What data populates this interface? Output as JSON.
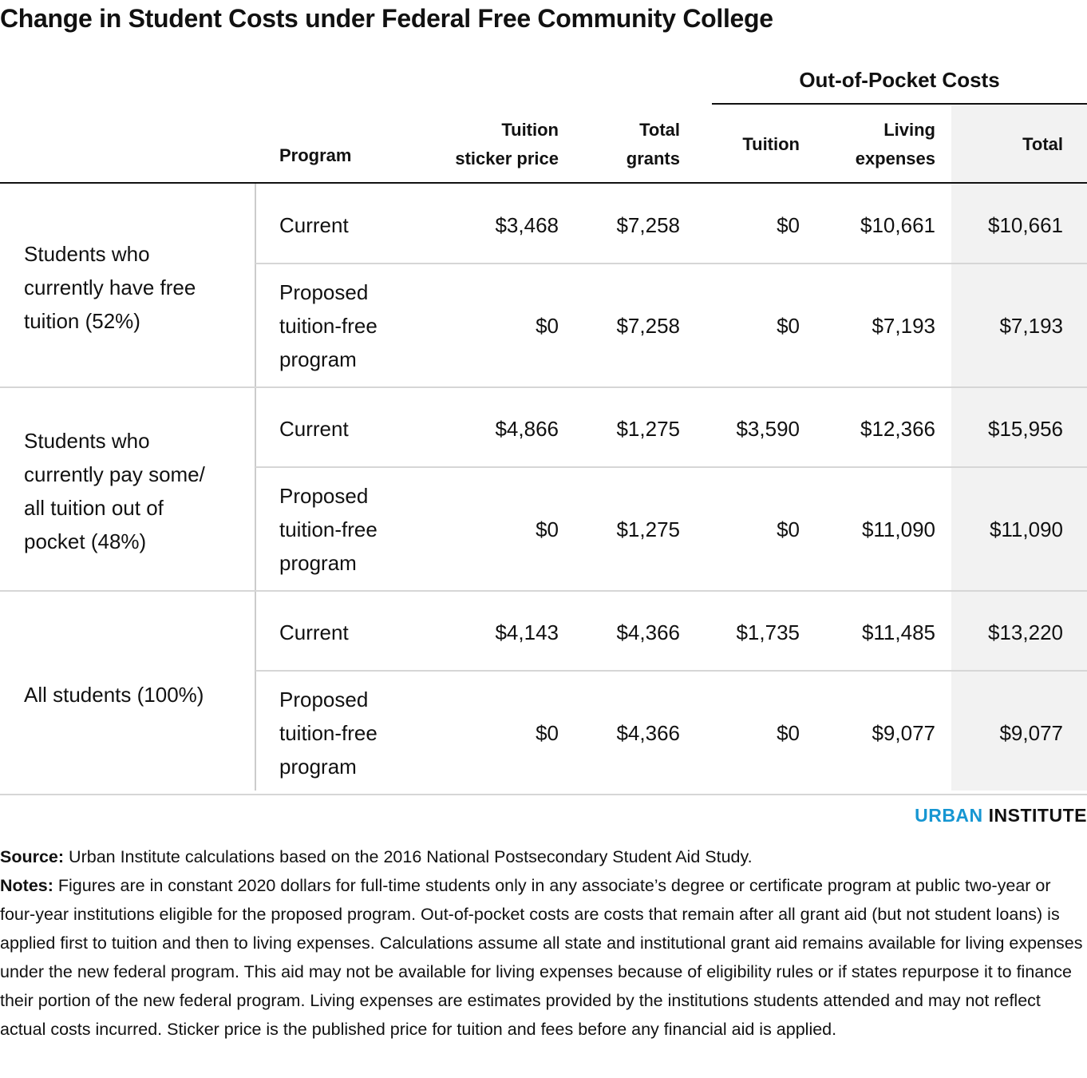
{
  "title": "Change in Student Costs under Federal Free Community College",
  "table": {
    "group_header": "Out-of-Pocket Costs",
    "columns": [
      [
        "Program"
      ],
      [
        "Tuition",
        "sticker price"
      ],
      [
        "Total",
        "grants"
      ],
      [
        "Tuition"
      ],
      [
        "Living",
        "expenses"
      ],
      [
        "Total"
      ]
    ],
    "groups": [
      {
        "label": [
          "Students who",
          "currently have free",
          "tuition (52%)"
        ],
        "rows": [
          {
            "program": [
              "Current"
            ],
            "cells": [
              "$3,468",
              "$7,258",
              "$0",
              "$10,661",
              "$10,661"
            ]
          },
          {
            "program": [
              "Proposed",
              "tuition-free",
              "program"
            ],
            "cells": [
              "$0",
              "$7,258",
              "$0",
              "$7,193",
              "$7,193"
            ]
          }
        ]
      },
      {
        "label": [
          "Students who",
          "currently pay some/",
          "all tuition out of",
          "pocket (48%)"
        ],
        "rows": [
          {
            "program": [
              "Current"
            ],
            "cells": [
              "$4,866",
              "$1,275",
              "$3,590",
              "$12,366",
              "$15,956"
            ]
          },
          {
            "program": [
              "Proposed",
              "tuition-free",
              "program"
            ],
            "cells": [
              "$0",
              "$1,275",
              "$0",
              "$11,090",
              "$11,090"
            ]
          }
        ]
      },
      {
        "label": [
          "All students (100%)"
        ],
        "rows": [
          {
            "program": [
              "Current"
            ],
            "cells": [
              "$4,143",
              "$4,366",
              "$1,735",
              "$11,485",
              "$13,220"
            ]
          },
          {
            "program": [
              "Proposed",
              "tuition-free",
              "program"
            ],
            "cells": [
              "$0",
              "$4,366",
              "$0",
              "$9,077",
              "$9,077"
            ]
          }
        ]
      }
    ]
  },
  "logo": {
    "part1": "URBAN",
    "part2": "INSTITUTE"
  },
  "source": {
    "label": "Source:",
    "text": "Urban Institute calculations based on the 2016 National Postsecondary Student Aid Study."
  },
  "notes": {
    "label": "Notes:",
    "text": "Figures are in constant 2020 dollars for full-time students only in any associate’s degree or certificate program at public two-year or four-year institutions eligible for the proposed program. Out-of-pocket costs are costs that remain after all grant aid (but not student loans) is applied first to tuition and then to living expenses. Calculations assume all state and institutional grant aid remains available for living expenses under the new federal program. This aid may not be available for living expenses because of eligibility rules or if states repurpose it to finance their portion of the new federal program. Living expenses are estimates provided by the institutions students attended and may not reflect actual costs incurred. Sticker price is the published price for tuition and fees before any financial aid is applied."
  }
}
